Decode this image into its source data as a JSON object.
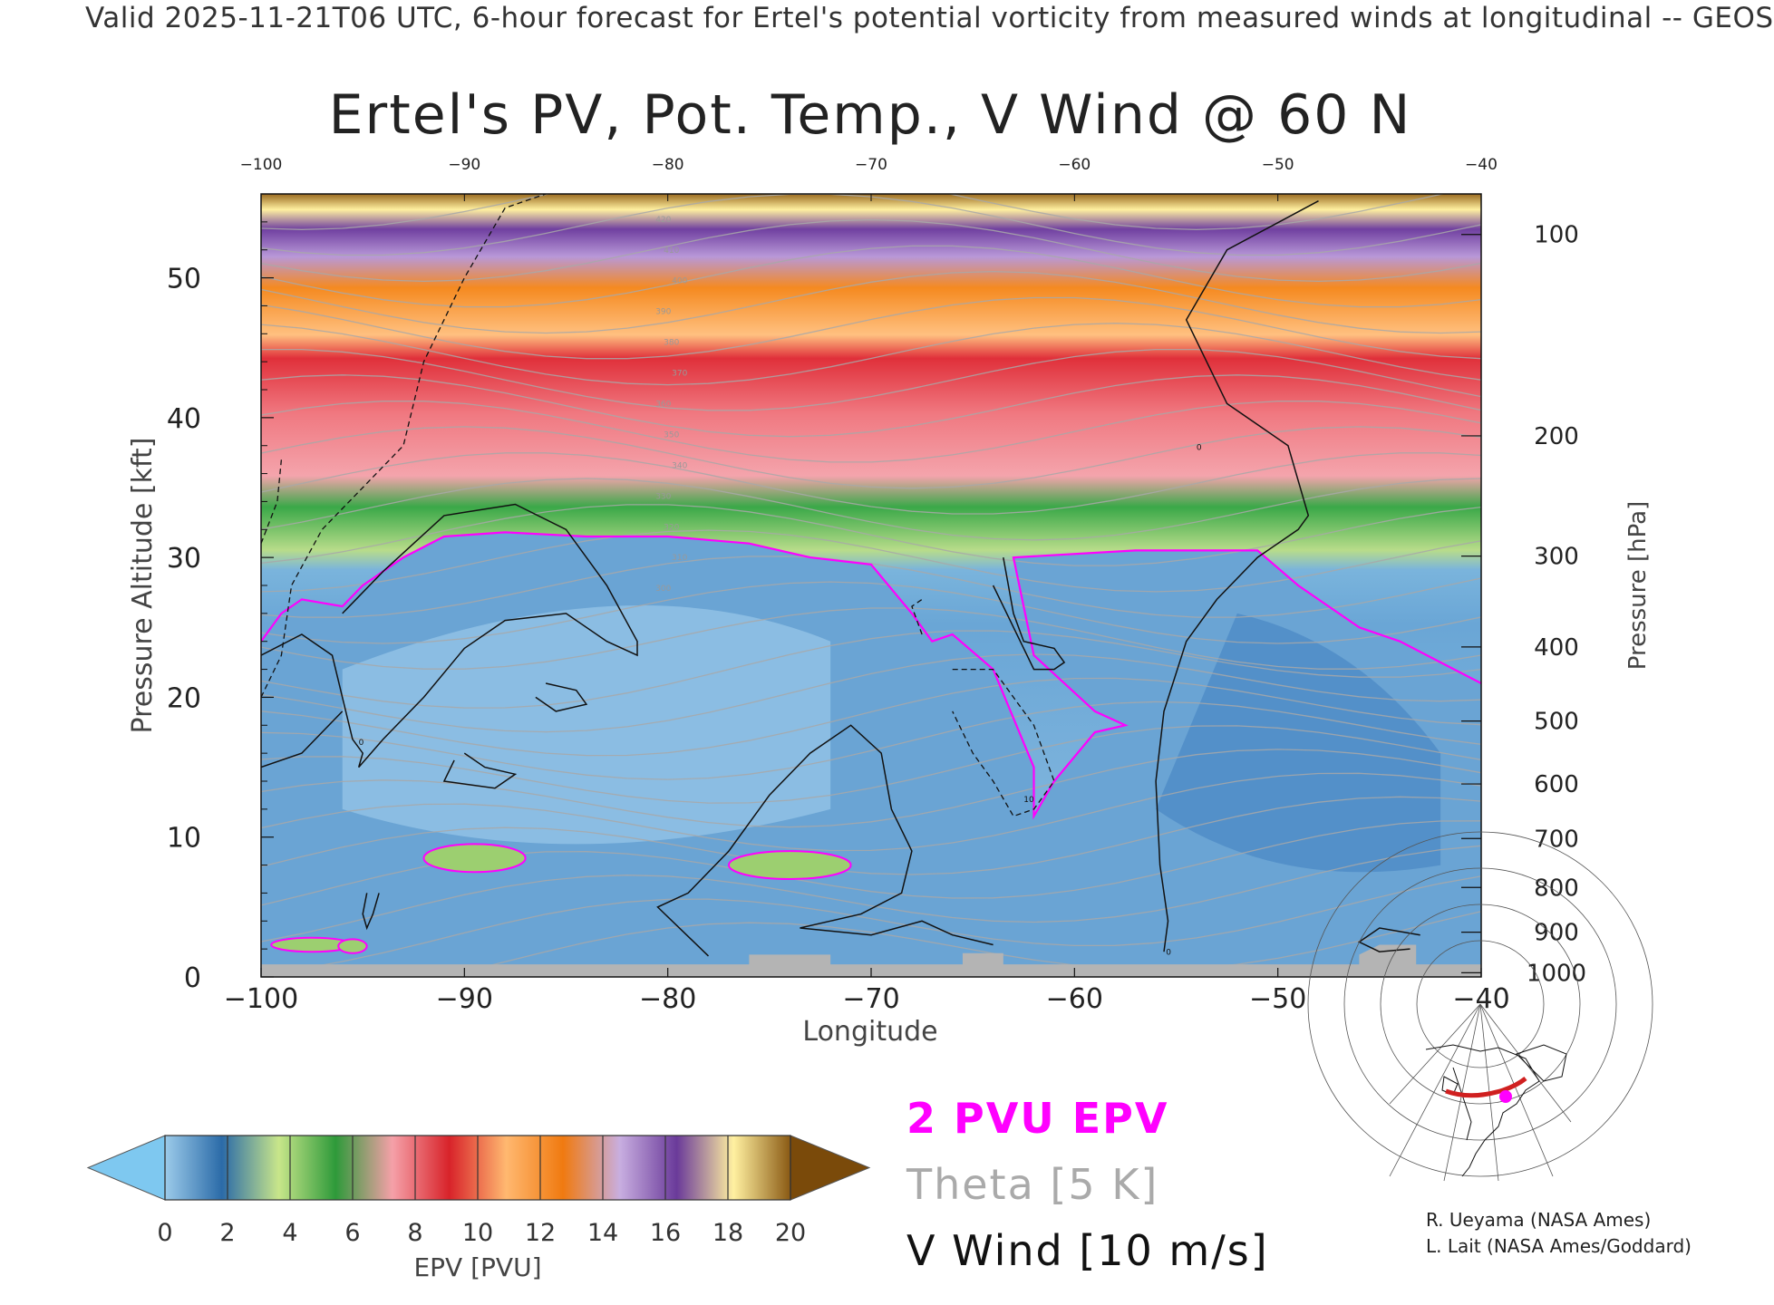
{
  "header": "Valid 2025-11-21T06 UTC, 6-hour forecast for Ertel's potential vorticity from measured winds at longitudinal -- GEOS",
  "chart_data": {
    "type": "heatmap",
    "title": "Ertel's PV, Pot. Temp., V Wind @ 60 N",
    "xlabel": "Longitude",
    "ylabel": "Pressure Altitude [kft]",
    "y2label": "Pressure [hPa]",
    "xlim": [
      -100,
      -40
    ],
    "ylim": [
      0,
      56
    ],
    "x_ticks": [
      -100,
      -90,
      -80,
      -70,
      -60,
      -50,
      -40
    ],
    "top_ticks": [
      -100,
      -90,
      -80,
      -70,
      -60,
      -50,
      -40
    ],
    "y_ticks": [
      0,
      10,
      20,
      30,
      40,
      50
    ],
    "pressure_ticks": [
      {
        "hpa": 100,
        "kft": 53.1
      },
      {
        "hpa": 200,
        "kft": 38.7
      },
      {
        "hpa": 300,
        "kft": 30.1
      },
      {
        "hpa": 400,
        "kft": 23.6
      },
      {
        "hpa": 500,
        "kft": 18.3
      },
      {
        "hpa": 600,
        "kft": 13.8
      },
      {
        "hpa": 700,
        "kft": 9.9
      },
      {
        "hpa": 800,
        "kft": 6.4
      },
      {
        "hpa": 900,
        "kft": 3.2
      },
      {
        "hpa": 1000,
        "kft": 0.3
      }
    ],
    "colorbar": {
      "label": "EPV [PVU]",
      "ticks": [
        0,
        2,
        4,
        6,
        8,
        10,
        12,
        14,
        16,
        18,
        20
      ],
      "under_color": "#7ec8f0",
      "over_color": "#7a4a0a",
      "stops": [
        "#9ccbea",
        "#2b6ba8",
        "#c8e68a",
        "#2e9a3a",
        "#f5a0a8",
        "#d8232a",
        "#ffb870",
        "#f07a10",
        "#c8aee0",
        "#6a3a9a",
        "#fff0a0",
        "#8a5a14"
      ]
    },
    "two_pvu_boundary": [
      {
        "lon": -100,
        "kft": 24
      },
      {
        "lon": -99,
        "kft": 26
      },
      {
        "lon": -98,
        "kft": 27
      },
      {
        "lon": -96,
        "kft": 26.5
      },
      {
        "lon": -95,
        "kft": 28
      },
      {
        "lon": -93,
        "kft": 30
      },
      {
        "lon": -91,
        "kft": 31.5
      },
      {
        "lon": -88,
        "kft": 31.8
      },
      {
        "lon": -84,
        "kft": 31.5
      },
      {
        "lon": -80,
        "kft": 31.5
      },
      {
        "lon": -76,
        "kft": 31
      },
      {
        "lon": -73,
        "kft": 30
      },
      {
        "lon": -70,
        "kft": 29.5
      },
      {
        "lon": -68,
        "kft": 26
      },
      {
        "lon": -67,
        "kft": 24
      },
      {
        "lon": -66,
        "kft": 24.5
      },
      {
        "lon": -64,
        "kft": 22
      },
      {
        "lon": -62,
        "kft": 15
      },
      {
        "lon": -62,
        "kft": 11.5
      },
      {
        "lon": -61,
        "kft": 14
      },
      {
        "lon": -59,
        "kft": 17.5
      },
      {
        "lon": -57.5,
        "kft": 18
      },
      {
        "lon": -59,
        "kft": 19
      },
      {
        "lon": -62,
        "kft": 23
      },
      {
        "lon": -63,
        "kft": 30
      },
      {
        "lon": -57,
        "kft": 30.5
      },
      {
        "lon": -51,
        "kft": 30.5
      },
      {
        "lon": -49,
        "kft": 28
      },
      {
        "lon": -46,
        "kft": 25
      },
      {
        "lon": -44,
        "kft": 24
      },
      {
        "lon": -42,
        "kft": 22.5
      },
      {
        "lon": -40,
        "kft": 21
      }
    ],
    "theta_labels": [
      "420",
      "410",
      "400",
      "390",
      "380",
      "370",
      "360",
      "350",
      "340",
      "330",
      "320",
      "310",
      "300"
    ],
    "v_wind_zero_contour": "0",
    "v_wind_contour_label": "10"
  },
  "legend": {
    "pvu": "2 PVU EPV",
    "theta": "Theta [5 K]",
    "wind": "V Wind [10 m/s]"
  },
  "credits": [
    "R. Ueyama (NASA Ames)",
    "L. Lait (NASA Ames/Goddard)"
  ],
  "colors": {
    "pvu_line": "#ff00ff",
    "theta_line": "#a8a8a8",
    "wind_line": "#111111",
    "terrain": "#b4b4b4",
    "map_track": "#d02020",
    "map_marker": "#ff00ff"
  },
  "icons": [
    "location-map-inset"
  ]
}
